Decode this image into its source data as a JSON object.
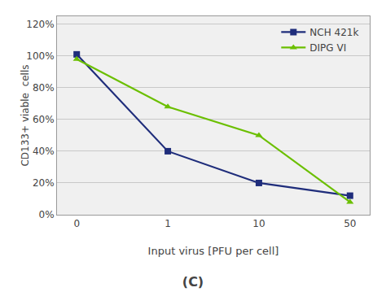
{
  "chart_data": {
    "type": "line",
    "title": "(C)",
    "xlabel": "Input virus [PFU per cell]",
    "ylabel": "CD133+ viable  cells",
    "categories": [
      "0",
      "1",
      "10",
      "50"
    ],
    "series": [
      {
        "name": "NCH 421k",
        "color": "#1F2D7B",
        "marker": "square",
        "values": [
          1.01,
          0.4,
          0.2,
          0.12
        ]
      },
      {
        "name": "DIPG VI",
        "color": "#6BBF00",
        "marker": "triangle",
        "values": [
          0.98,
          0.68,
          0.5,
          0.08
        ]
      }
    ],
    "ylim": [
      0,
      1.25
    ],
    "yticks": [
      {
        "value": 0,
        "label": "0%"
      },
      {
        "value": 0.2,
        "label": "20%"
      },
      {
        "value": 0.4,
        "label": "40%"
      },
      {
        "value": 0.6,
        "label": "60%"
      },
      {
        "value": 0.8,
        "label": "80%"
      },
      {
        "value": 1.0,
        "label": "100%"
      },
      {
        "value": 1.2,
        "label": "120%"
      }
    ],
    "grid": true,
    "legend": "upper right"
  }
}
